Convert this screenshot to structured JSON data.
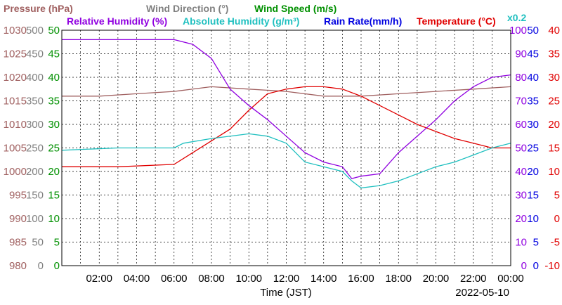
{
  "chart_data": {
    "type": "line",
    "date_label": "2022-05-10",
    "xlabel": "Time (JST)",
    "x_ticks": [
      "02:00",
      "04:00",
      "06:00",
      "08:00",
      "10:00",
      "12:00",
      "14:00",
      "16:00",
      "18:00",
      "20:00",
      "22:00",
      "00:00"
    ],
    "legend": {
      "pressure": "Pressure (hPa)",
      "wind_direction": "Wind Direction (°)",
      "wind_speed": "Wind Speed (m/s)",
      "rh": "Relative Humidity (%)",
      "abs_hum": "Absolute Humidity (g/m³)",
      "rain": "Rain Rate(mm/h)",
      "temp": "Temperature (°C)",
      "abs_scale": "x0.2"
    },
    "axes": {
      "pressure": {
        "color": "#a06060",
        "ticks": [
          "1030",
          "1025",
          "1020",
          "1015",
          "1010",
          "1005",
          "1000",
          "995",
          "990",
          "985",
          "980"
        ]
      },
      "wind_direction": {
        "color": "#808080",
        "ticks": [
          "500",
          "450",
          "400",
          "350",
          "300",
          "250",
          "200",
          "150",
          "100",
          "50",
          "0"
        ]
      },
      "wind_speed": {
        "color": "#009000",
        "ticks": [
          "50",
          "45",
          "40",
          "35",
          "30",
          "25",
          "20",
          "15",
          "10",
          "5",
          "0"
        ]
      },
      "rh": {
        "color": "#9000e0",
        "ticks": [
          "100",
          "90",
          "80",
          "70",
          "60",
          "50",
          "40",
          "30",
          "20",
          "10",
          "0"
        ]
      },
      "rain": {
        "color": "#0000e0",
        "ticks": [
          "50",
          "45",
          "40",
          "35",
          "30",
          "25",
          "20",
          "15",
          "10",
          "5",
          "0"
        ]
      },
      "temp": {
        "color": "#e00000",
        "ticks": [
          "40",
          "35",
          "30",
          "25",
          "20",
          "15",
          "10",
          "5",
          "0",
          "-5",
          "-10"
        ]
      }
    },
    "series": [
      {
        "key": "pressure",
        "color": "#a06060",
        "unit_min": 980,
        "unit_max": 1030,
        "points": [
          [
            0,
            1016
          ],
          [
            2,
            1016
          ],
          [
            4,
            1016.5
          ],
          [
            6,
            1017
          ],
          [
            8,
            1018
          ],
          [
            10,
            1017.5
          ],
          [
            12,
            1017
          ],
          [
            14,
            1016
          ],
          [
            16,
            1016
          ],
          [
            18,
            1016.5
          ],
          [
            20,
            1017
          ],
          [
            22,
            1017.5
          ],
          [
            24,
            1018
          ]
        ]
      },
      {
        "key": "temp",
        "color": "#e00000",
        "unit_min": -10,
        "unit_max": 40,
        "points": [
          [
            0,
            11
          ],
          [
            3,
            11
          ],
          [
            6,
            11.5
          ],
          [
            7,
            14
          ],
          [
            9,
            19
          ],
          [
            10,
            23
          ],
          [
            11,
            26.5
          ],
          [
            12,
            27.5
          ],
          [
            13,
            28
          ],
          [
            14,
            28
          ],
          [
            15,
            27.5
          ],
          [
            16,
            26
          ],
          [
            17,
            24
          ],
          [
            18,
            22
          ],
          [
            19,
            20
          ],
          [
            20,
            18.5
          ],
          [
            21,
            17
          ],
          [
            22,
            16
          ],
          [
            23,
            15
          ],
          [
            24,
            15
          ]
        ]
      },
      {
        "key": "abs_hum",
        "color": "#20c0c0",
        "unit_min": 0,
        "unit_max": 50,
        "points": [
          [
            0,
            24.5
          ],
          [
            3,
            25
          ],
          [
            6,
            25
          ],
          [
            6.5,
            26
          ],
          [
            8,
            27
          ],
          [
            10,
            28
          ],
          [
            11,
            27.5
          ],
          [
            12,
            26
          ],
          [
            13,
            22
          ],
          [
            14,
            21
          ],
          [
            15,
            20
          ],
          [
            15.5,
            18
          ],
          [
            16,
            16.5
          ],
          [
            17,
            17
          ],
          [
            18,
            18
          ],
          [
            19,
            19.5
          ],
          [
            20,
            21
          ],
          [
            21,
            22
          ],
          [
            22,
            23.5
          ],
          [
            23,
            25
          ],
          [
            24,
            26
          ]
        ]
      },
      {
        "key": "rh",
        "color": "#9000e0",
        "unit_min": 0,
        "unit_max": 100,
        "points": [
          [
            0,
            96
          ],
          [
            6,
            96
          ],
          [
            7,
            94
          ],
          [
            8,
            88
          ],
          [
            9,
            75
          ],
          [
            10,
            68
          ],
          [
            11,
            62
          ],
          [
            12,
            55
          ],
          [
            13,
            48
          ],
          [
            14,
            44
          ],
          [
            15,
            42
          ],
          [
            15.5,
            37
          ],
          [
            16,
            38
          ],
          [
            17,
            39
          ],
          [
            18,
            48
          ],
          [
            19,
            55
          ],
          [
            20,
            62
          ],
          [
            21,
            70
          ],
          [
            22,
            76
          ],
          [
            23,
            80
          ],
          [
            24,
            81
          ]
        ]
      }
    ]
  }
}
